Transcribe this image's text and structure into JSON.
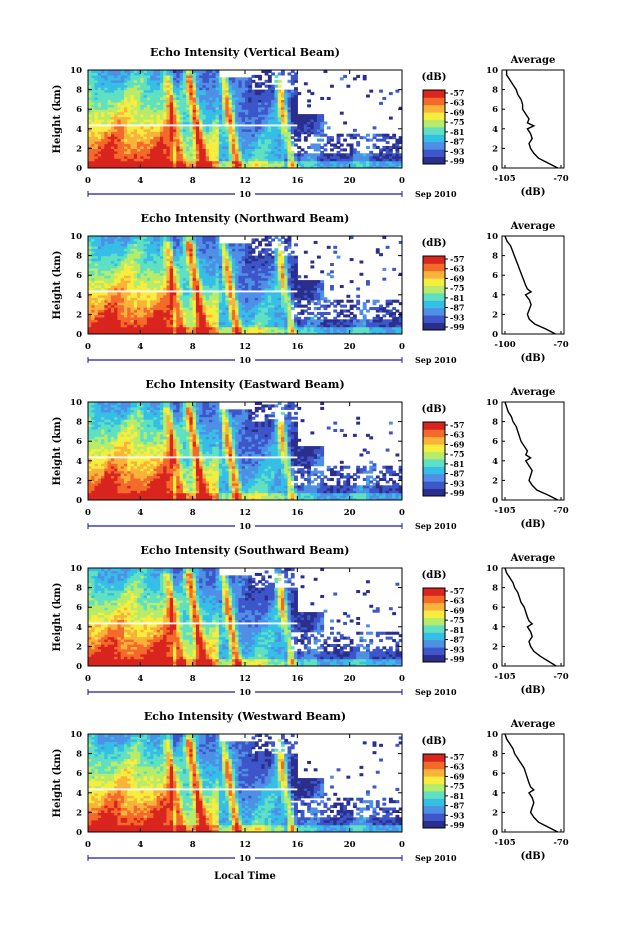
{
  "colorbar": {
    "unit": "(dB)",
    "levels": [
      "-57",
      "-63",
      "-69",
      "-75",
      "-81",
      "-87",
      "-93",
      "-99"
    ],
    "colors": [
      "#2a2f8e",
      "#3d56c9",
      "#4f8fe6",
      "#36bfe6",
      "#5fe0c2",
      "#b7ec6b",
      "#f7ed3f",
      "#f9b23a",
      "#f46a2a",
      "#d9251f"
    ]
  },
  "shared": {
    "ylabel": "Height (km)",
    "date_label": "10",
    "date_suffix": "Sep 2010",
    "xlabel": "Local Time",
    "avg_title": "Average",
    "avg_xlabel": "(dB)"
  },
  "chart_data": [
    {
      "type": "heatmap",
      "title": "Echo Intensity (Vertical Beam)",
      "x_ticks": [
        "0",
        "4",
        "8",
        "12",
        "16",
        "20",
        "0"
      ],
      "y_ticks": [
        "0",
        "2",
        "4",
        "6",
        "8",
        "10"
      ],
      "xlim": [
        0,
        24
      ],
      "ylim": [
        0,
        10
      ],
      "average": {
        "type": "line",
        "xlim": [
          -105,
          -70
        ],
        "x_ticks": [
          "-105",
          "-70"
        ],
        "y_ticks": [
          "0",
          "2",
          "4",
          "6",
          "8",
          "10"
        ],
        "height": [
          0,
          0.5,
          1,
          1.5,
          2,
          2.5,
          3,
          3.5,
          4,
          4.3,
          4.6,
          5,
          5.5,
          6,
          6.5,
          7,
          7.5,
          8,
          8.5,
          9,
          9.5,
          10
        ],
        "values": [
          -72,
          -78,
          -84,
          -87,
          -89,
          -90,
          -88,
          -89,
          -91,
          -87,
          -91,
          -90,
          -92,
          -94,
          -94,
          -95,
          -97,
          -98,
          -100,
          -102,
          -104,
          -104
        ]
      }
    },
    {
      "type": "heatmap",
      "title": "Echo Intensity (Northward Beam)",
      "x_ticks": [
        "0",
        "4",
        "8",
        "12",
        "16",
        "20",
        "0"
      ],
      "y_ticks": [
        "0",
        "2",
        "4",
        "6",
        "8",
        "10"
      ],
      "xlim": [
        0,
        24
      ],
      "ylim": [
        0,
        10
      ],
      "average": {
        "type": "line",
        "xlim": [
          -100,
          -70
        ],
        "x_ticks": [
          "-100",
          "-70"
        ],
        "y_ticks": [
          "0",
          "2",
          "4",
          "6",
          "8",
          "10"
        ],
        "height": [
          0,
          0.5,
          1,
          1.5,
          2,
          2.5,
          3,
          3.5,
          4,
          4.3,
          4.6,
          5,
          5.5,
          6,
          6.5,
          7,
          7.5,
          8,
          8.5,
          9,
          9.5,
          10
        ],
        "values": [
          -73,
          -78,
          -84,
          -87,
          -88,
          -87,
          -86,
          -87,
          -89,
          -86,
          -88,
          -89,
          -90,
          -91,
          -92,
          -93,
          -94,
          -95,
          -96,
          -97,
          -99,
          -100
        ]
      }
    },
    {
      "type": "heatmap",
      "title": "Echo Intensity (Eastward Beam)",
      "x_ticks": [
        "0",
        "4",
        "8",
        "12",
        "16",
        "20",
        "0"
      ],
      "y_ticks": [
        "0",
        "2",
        "4",
        "6",
        "8",
        "10"
      ],
      "xlim": [
        0,
        24
      ],
      "ylim": [
        0,
        10
      ],
      "average": {
        "type": "line",
        "xlim": [
          -105,
          -70
        ],
        "x_ticks": [
          "-105",
          "-70"
        ],
        "y_ticks": [
          "0",
          "2",
          "4",
          "6",
          "8",
          "10"
        ],
        "height": [
          0,
          0.5,
          1,
          1.5,
          2,
          2.5,
          3,
          3.5,
          4,
          4.3,
          4.6,
          5,
          5.5,
          6,
          6.5,
          7,
          7.5,
          8,
          8.5,
          9,
          9.5,
          10
        ],
        "values": [
          -72,
          -78,
          -85,
          -88,
          -90,
          -89,
          -88,
          -90,
          -92,
          -89,
          -92,
          -91,
          -93,
          -95,
          -96,
          -97,
          -98,
          -100,
          -101,
          -103,
          -104,
          -105
        ]
      }
    },
    {
      "type": "heatmap",
      "title": "Echo Intensity (Southward Beam)",
      "x_ticks": [
        "0",
        "4",
        "8",
        "12",
        "16",
        "20",
        "0"
      ],
      "y_ticks": [
        "0",
        "2",
        "4",
        "6",
        "8",
        "10"
      ],
      "xlim": [
        0,
        24
      ],
      "ylim": [
        0,
        10
      ],
      "average": {
        "type": "line",
        "xlim": [
          -105,
          -70
        ],
        "x_ticks": [
          "-105",
          "-70"
        ],
        "y_ticks": [
          "0",
          "2",
          "4",
          "6",
          "8",
          "10"
        ],
        "height": [
          0,
          0.5,
          1,
          1.5,
          2,
          2.5,
          3,
          3.5,
          4,
          4.3,
          4.6,
          5,
          5.5,
          6,
          6.5,
          7,
          7.5,
          8,
          8.5,
          9,
          9.5,
          10
        ],
        "values": [
          -73,
          -78,
          -83,
          -87,
          -89,
          -90,
          -88,
          -89,
          -91,
          -88,
          -90,
          -91,
          -92,
          -93,
          -95,
          -96,
          -97,
          -99,
          -100,
          -102,
          -104,
          -105
        ]
      }
    },
    {
      "type": "heatmap",
      "title": "Echo Intensity (Westward Beam)",
      "x_ticks": [
        "0",
        "4",
        "8",
        "12",
        "16",
        "20",
        "0"
      ],
      "y_ticks": [
        "0",
        "2",
        "4",
        "6",
        "8",
        "10"
      ],
      "xlim": [
        0,
        24
      ],
      "ylim": [
        0,
        10
      ],
      "average": {
        "type": "line",
        "xlim": [
          -105,
          -70
        ],
        "x_ticks": [
          "-105",
          "-70"
        ],
        "y_ticks": [
          "0",
          "2",
          "4",
          "6",
          "8",
          "10"
        ],
        "height": [
          0,
          0.5,
          1,
          1.5,
          2,
          2.5,
          3,
          3.5,
          4,
          4.3,
          4.6,
          5,
          5.5,
          6,
          6.5,
          7,
          7.5,
          8,
          8.5,
          9,
          9.5,
          10
        ],
        "values": [
          -72,
          -78,
          -84,
          -87,
          -89,
          -88,
          -87,
          -88,
          -90,
          -87,
          -89,
          -90,
          -91,
          -92,
          -93,
          -95,
          -97,
          -99,
          -100,
          -102,
          -104,
          -105
        ]
      }
    }
  ]
}
